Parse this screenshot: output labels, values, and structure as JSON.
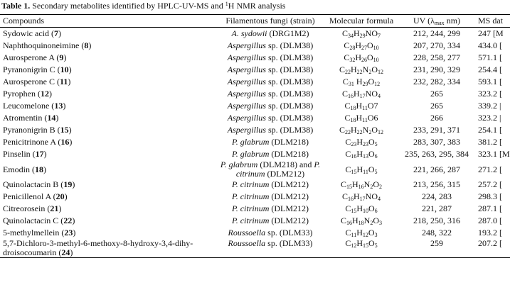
{
  "title": [
    "Table 1.",
    " Secondary metabolites identified by HPLC-UV-MS and ",
    "1",
    "H NMR analysis"
  ],
  "table": {
    "headers": {
      "compound": "Compounds",
      "fungi": "Filamentous fungi (strain)",
      "formula": "Molecular formula",
      "uv": [
        "UV (λ",
        "max",
        " nm)"
      ],
      "ms": "MS dat"
    },
    "rows": [
      {
        "compound": [
          "Sydowic acid (",
          "7",
          ")"
        ],
        "fungi": [
          "A. sydowii",
          " (DRG1M2)"
        ],
        "formula": [
          "C",
          "34",
          "H",
          "29",
          "NO",
          "7"
        ],
        "uv": "212, 244, 299",
        "ms": "247 [M"
      },
      {
        "compound": [
          "Naphthoquinoneimine (",
          "8",
          ")"
        ],
        "fungi": [
          "Aspergillus",
          " sp. (DLM38)"
        ],
        "formula": [
          "C",
          "28",
          "H",
          "27",
          "O",
          "10"
        ],
        "uv": "207, 270, 334",
        "ms": "434.0 ["
      },
      {
        "compound": [
          "Aurosperone A (",
          "9",
          ")"
        ],
        "fungi": [
          "Aspergillus",
          " sp. (DLM38)"
        ],
        "formula": [
          "C",
          "32",
          "H",
          "26",
          "O",
          "10"
        ],
        "uv": "228, 258, 277",
        "ms": "571.1 ["
      },
      {
        "compound": [
          "Pyranonigrin C (",
          "10",
          ")"
        ],
        "fungi": [
          "Aspergillus",
          " sp. (DLM38)"
        ],
        "formula": [
          "C",
          "22",
          "H",
          "22",
          "N",
          "2",
          "O",
          "12"
        ],
        "uv": "231, 290, 329",
        "ms": "254.4 ["
      },
      {
        "compound": [
          "Aurosperone C (",
          "11",
          ")"
        ],
        "fungi": [
          "Aspergillus",
          " sp. (DLM38)"
        ],
        "formula": [
          "C",
          "31",
          " H",
          "29",
          "O",
          "12"
        ],
        "uv": "232, 282, 334",
        "ms": "593.1 ["
      },
      {
        "compound": [
          "Pyrophen (",
          "12",
          ")"
        ],
        "fungi": [
          "Aspergillus",
          " sp. (DLM38)"
        ],
        "formula": [
          "C",
          "16",
          "H",
          "17",
          "NO",
          "4"
        ],
        "uv": "265",
        "ms": "323.2 ["
      },
      {
        "compound": [
          "Leucomelone (",
          "13",
          ")"
        ],
        "fungi": [
          "Aspergillus",
          " sp. (DLM38)"
        ],
        "formula": [
          "C",
          "18",
          "H",
          "11",
          "O7"
        ],
        "uv": "265",
        "ms": "339.2 |"
      },
      {
        "compound": [
          "Atromentin (",
          "14",
          ")"
        ],
        "fungi": [
          "Aspergillus",
          " sp. (DLM38)"
        ],
        "formula": [
          "C",
          "18",
          "H",
          "11",
          "O6"
        ],
        "uv": "266",
        "ms": "323.2 |"
      },
      {
        "compound": [
          "Pyranonigrin B (",
          "15",
          ")"
        ],
        "fungi": [
          "Aspergillus",
          " sp. (DLM38)"
        ],
        "formula": [
          "C",
          "22",
          "H",
          "22",
          "N",
          "2",
          "O",
          "12"
        ],
        "uv": "233, 291, 371",
        "ms": "254.1 ["
      },
      {
        "compound": [
          "Penicitrinone A (",
          "16",
          ")"
        ],
        "fungi": [
          "P. glabrum",
          " (DLM218)"
        ],
        "formula": [
          "C",
          "23",
          "H",
          "23",
          "O",
          "5"
        ],
        "uv": "283, 307, 383",
        "ms": "381.2 ["
      },
      {
        "compound": [
          "Pinselin (",
          "17",
          ")"
        ],
        "fungi": [
          "P. glabrum",
          " (DLM218)"
        ],
        "formula": [
          "C",
          "16",
          "H",
          "13",
          "O",
          "6"
        ],
        "uv": "235, 263, 295, 384",
        "ms": "323.1 [M"
      },
      {
        "compound": [
          "Emodin (",
          "18",
          ")"
        ],
        "fungi": [
          "P. glabrum",
          " (DLM218) and ",
          "P. citrinum",
          " (DLM212)"
        ],
        "formula": [
          "C",
          "15",
          "H",
          "11",
          "O",
          "5"
        ],
        "uv": "221, 266, 287",
        "ms": "271.2 ["
      },
      {
        "compound": [
          "Quinolactacin B (",
          "19",
          ")"
        ],
        "fungi": [
          "P. citrinum",
          " (DLM212)"
        ],
        "formula": [
          "C",
          "15",
          "H",
          "16",
          "N",
          "2",
          "O",
          "2"
        ],
        "uv": "213, 256, 315",
        "ms": "257.2 ["
      },
      {
        "compound": [
          "Penicillenol A (",
          "20",
          ")"
        ],
        "fungi": [
          "P. citrinum",
          " (DLM212)"
        ],
        "formula": [
          "C",
          "16",
          "H",
          "17",
          "NO",
          "4"
        ],
        "uv": "224, 283",
        "ms": "298.3 ["
      },
      {
        "compound": [
          "Citreorosein (",
          "21",
          ")"
        ],
        "fungi": [
          "P. citrinum",
          " (DLM212)"
        ],
        "formula": [
          "C",
          "15",
          "H",
          "10",
          "O",
          "6"
        ],
        "uv": "221, 287",
        "ms": "287.1 ["
      },
      {
        "compound": [
          "Quinolactacin C (",
          "22",
          ")"
        ],
        "fungi": [
          "P. citrinum",
          " (DLM212)"
        ],
        "formula": [
          "C",
          "16",
          "H",
          "18",
          "N",
          "2",
          "O",
          "3"
        ],
        "uv": "218, 250, 316",
        "ms": "287.0 ["
      },
      {
        "compound": [
          "5-methylmellein (",
          "23",
          ")"
        ],
        "fungi": [
          "Roussoella",
          " sp. (DLM33)"
        ],
        "formula": [
          "C",
          "11",
          "H",
          "12",
          "O",
          "3"
        ],
        "uv": "248, 322",
        "ms": "193.2 ["
      },
      {
        "compound": [
          "5,7-Dichloro-3-methyl-6-methoxy-8-hydroxy-3,4-dihy-droisocoumarin (",
          "24",
          ")"
        ],
        "fungi": [
          "Roussoella",
          " sp. (DLM33)"
        ],
        "formula": [
          "C",
          "12",
          "H",
          "15",
          "O",
          "5"
        ],
        "uv": "259",
        "ms": "207.2 ["
      }
    ]
  }
}
